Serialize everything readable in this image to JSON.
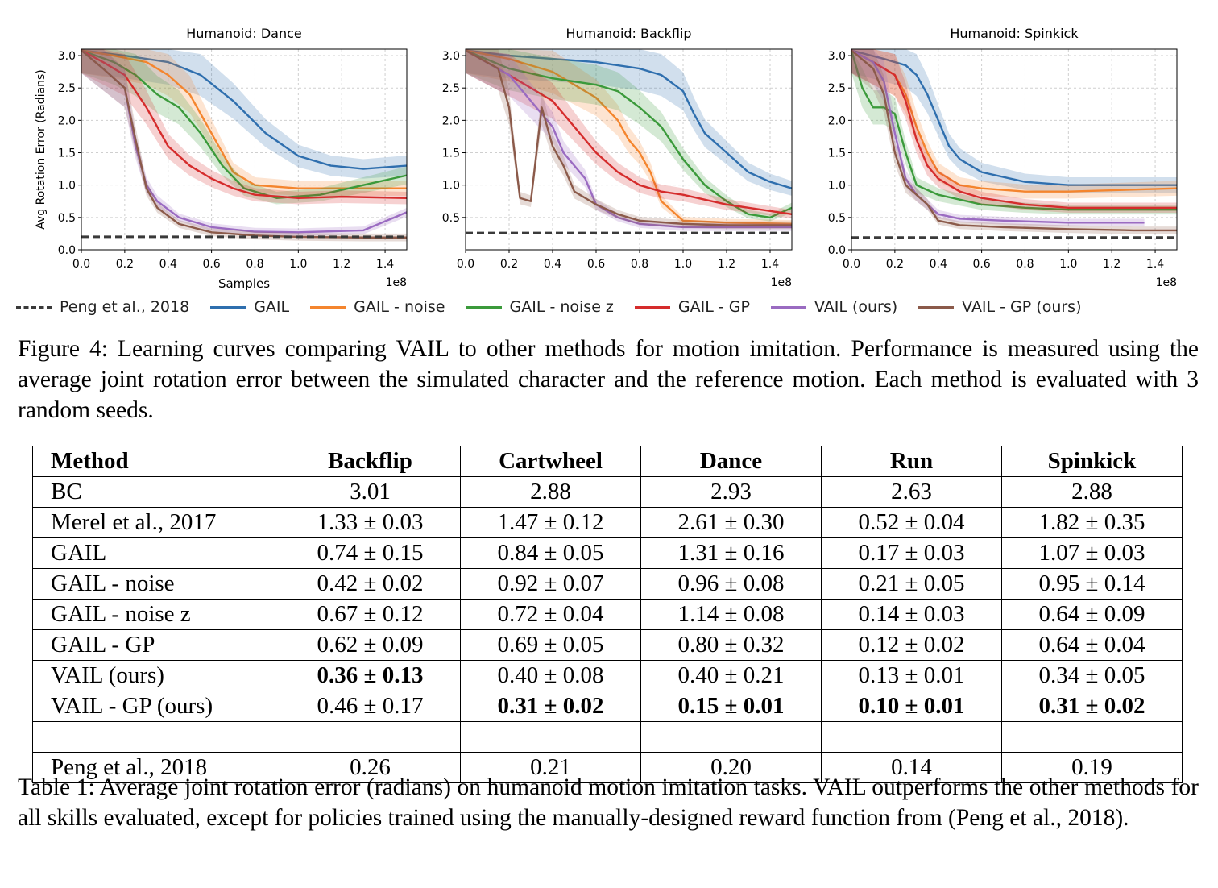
{
  "figure": {
    "legend": [
      {
        "label": "Peng et al., 2018",
        "color": "#3a3a3a",
        "dashed": true
      },
      {
        "label": "GAIL",
        "color": "#2f6fae"
      },
      {
        "label": "GAIL - noise",
        "color": "#f4852e"
      },
      {
        "label": "GAIL - noise z",
        "color": "#3b9a3b"
      },
      {
        "label": "GAIL - GP",
        "color": "#d52c2c"
      },
      {
        "label": "VAIL (ours)",
        "color": "#9a6bc1"
      },
      {
        "label": "VAIL - GP (ours)",
        "color": "#8b5a4a"
      }
    ],
    "caption": "Figure 4: Learning curves comparing VAIL to other methods for motion imitation. Performance is measured using the average joint rotation error between the simulated character and the reference motion. Each method is evaluated with 3 random seeds."
  },
  "chart_data": [
    {
      "type": "line",
      "title": "Humanoid: Dance",
      "xlabel": "Samples",
      "ylabel": "Avg Rotation Error (Radians)",
      "x_multiplier": "1e8",
      "xlim": [
        0,
        1.5
      ],
      "ylim": [
        0,
        3.1
      ],
      "xticks": [
        "0.0",
        "0.2",
        "0.4",
        "0.6",
        "0.8",
        "1.0",
        "1.2",
        "1.4"
      ],
      "yticks": [
        "0.0",
        "0.5",
        "1.0",
        "1.5",
        "2.0",
        "2.5",
        "3.0"
      ],
      "grid": true,
      "reference": {
        "name": "Peng et al., 2018",
        "y": 0.2
      },
      "series": [
        {
          "name": "GAIL",
          "x": [
            0,
            0.2,
            0.4,
            0.55,
            0.7,
            0.85,
            1.0,
            1.15,
            1.3,
            1.5
          ],
          "y": [
            3.08,
            3.0,
            2.9,
            2.7,
            2.3,
            1.8,
            1.45,
            1.3,
            1.25,
            1.3
          ]
        },
        {
          "name": "GAIL - noise",
          "x": [
            0,
            0.15,
            0.3,
            0.4,
            0.5,
            0.6,
            0.7,
            0.8,
            1.0,
            1.2,
            1.5
          ],
          "y": [
            3.08,
            3.0,
            2.9,
            2.7,
            2.4,
            1.8,
            1.2,
            1.0,
            0.95,
            0.95,
            0.95
          ]
        },
        {
          "name": "GAIL - noise z",
          "x": [
            0,
            0.15,
            0.25,
            0.35,
            0.45,
            0.55,
            0.65,
            0.75,
            0.9,
            1.1,
            1.3,
            1.5
          ],
          "y": [
            3.08,
            2.9,
            2.7,
            2.4,
            2.2,
            1.8,
            1.3,
            0.95,
            0.8,
            0.85,
            1.0,
            1.15
          ]
        },
        {
          "name": "GAIL - GP",
          "x": [
            0,
            0.1,
            0.2,
            0.3,
            0.4,
            0.5,
            0.6,
            0.7,
            0.8,
            1.0,
            1.2,
            1.5
          ],
          "y": [
            3.08,
            2.9,
            2.7,
            2.2,
            1.6,
            1.3,
            1.1,
            0.95,
            0.85,
            0.8,
            0.82,
            0.8
          ]
        },
        {
          "name": "VAIL (ours)",
          "x": [
            0,
            0.1,
            0.2,
            0.25,
            0.3,
            0.35,
            0.45,
            0.6,
            0.8,
            1.0,
            1.3,
            1.5
          ],
          "y": [
            3.08,
            2.8,
            2.5,
            1.6,
            1.0,
            0.75,
            0.5,
            0.35,
            0.28,
            0.27,
            0.3,
            0.58
          ]
        },
        {
          "name": "VAIL - GP (ours)",
          "x": [
            0,
            0.1,
            0.2,
            0.25,
            0.3,
            0.35,
            0.45,
            0.6,
            0.8,
            1.0,
            1.3,
            1.5
          ],
          "y": [
            3.08,
            2.8,
            2.5,
            1.7,
            0.95,
            0.65,
            0.4,
            0.27,
            0.22,
            0.2,
            0.19,
            0.19
          ]
        }
      ]
    },
    {
      "type": "line",
      "title": "Humanoid: Backflip",
      "x_multiplier": "1e8",
      "xlim": [
        0,
        1.5
      ],
      "ylim": [
        0,
        3.1
      ],
      "xticks": [
        "0.0",
        "0.2",
        "0.4",
        "0.6",
        "0.8",
        "1.0",
        "1.2",
        "1.4"
      ],
      "yticks": [
        "0.5",
        "1.0",
        "1.5",
        "2.0",
        "2.5",
        "3.0"
      ],
      "grid": true,
      "reference": {
        "name": "Peng et al., 2018",
        "y": 0.26
      },
      "series": [
        {
          "name": "GAIL",
          "x": [
            0,
            0.2,
            0.4,
            0.6,
            0.8,
            0.9,
            1.0,
            1.05,
            1.1,
            1.2,
            1.3,
            1.4,
            1.5
          ],
          "y": [
            3.08,
            3.0,
            2.95,
            2.9,
            2.8,
            2.7,
            2.45,
            2.1,
            1.8,
            1.5,
            1.2,
            1.05,
            0.95
          ]
        },
        {
          "name": "GAIL - noise",
          "x": [
            0,
            0.2,
            0.4,
            0.5,
            0.6,
            0.7,
            0.75,
            0.8,
            0.85,
            0.9,
            1.0,
            1.2,
            1.5
          ],
          "y": [
            3.08,
            2.95,
            2.75,
            2.55,
            2.35,
            2.0,
            1.7,
            1.5,
            1.2,
            0.75,
            0.45,
            0.42,
            0.4
          ]
        },
        {
          "name": "GAIL - noise z",
          "x": [
            0,
            0.2,
            0.4,
            0.6,
            0.7,
            0.8,
            0.9,
            1.0,
            1.1,
            1.2,
            1.3,
            1.4,
            1.5
          ],
          "y": [
            3.08,
            2.8,
            2.65,
            2.55,
            2.45,
            2.2,
            1.9,
            1.4,
            1.0,
            0.75,
            0.55,
            0.5,
            0.65
          ]
        },
        {
          "name": "GAIL - GP",
          "x": [
            0,
            0.2,
            0.4,
            0.5,
            0.6,
            0.7,
            0.8,
            0.9,
            1.0,
            1.2,
            1.4,
            1.5
          ],
          "y": [
            3.08,
            2.7,
            2.3,
            1.9,
            1.5,
            1.2,
            1.0,
            0.9,
            0.85,
            0.7,
            0.6,
            0.55
          ]
        },
        {
          "name": "VAIL (ours)",
          "x": [
            0,
            0.2,
            0.3,
            0.4,
            0.45,
            0.55,
            0.6,
            0.7,
            0.8,
            1.0,
            1.2,
            1.5
          ],
          "y": [
            3.08,
            2.7,
            2.3,
            1.9,
            1.5,
            1.1,
            0.7,
            0.5,
            0.4,
            0.35,
            0.35,
            0.35
          ]
        },
        {
          "name": "VAIL - GP (ours)",
          "x": [
            0,
            0.15,
            0.2,
            0.25,
            0.3,
            0.35,
            0.4,
            0.45,
            0.5,
            0.6,
            0.7,
            0.8,
            1.0,
            1.2,
            1.5
          ],
          "y": [
            3.08,
            2.8,
            2.2,
            0.8,
            0.75,
            2.2,
            1.6,
            1.3,
            0.9,
            0.7,
            0.55,
            0.45,
            0.4,
            0.38,
            0.38
          ]
        }
      ]
    },
    {
      "type": "line",
      "title": "Humanoid: Spinkick",
      "x_multiplier": "1e8",
      "xlim": [
        0,
        1.5
      ],
      "ylim": [
        0,
        3.1
      ],
      "xticks": [
        "0.0",
        "0.2",
        "0.4",
        "0.6",
        "0.8",
        "1.0",
        "1.2",
        "1.4"
      ],
      "yticks": [
        "0.0",
        "0.5",
        "1.0",
        "1.5",
        "2.0",
        "2.5",
        "3.0"
      ],
      "grid": true,
      "reference": {
        "name": "Peng et al., 2018",
        "y": 0.19
      },
      "series": [
        {
          "name": "GAIL",
          "x": [
            0,
            0.15,
            0.25,
            0.3,
            0.35,
            0.4,
            0.45,
            0.5,
            0.6,
            0.8,
            1.0,
            1.2,
            1.5
          ],
          "y": [
            3.08,
            2.95,
            2.85,
            2.7,
            2.4,
            2.0,
            1.6,
            1.4,
            1.2,
            1.05,
            1.0,
            1.0,
            1.0
          ]
        },
        {
          "name": "GAIL - noise",
          "x": [
            0,
            0.1,
            0.2,
            0.25,
            0.3,
            0.35,
            0.4,
            0.5,
            0.6,
            0.8,
            1.0,
            1.5
          ],
          "y": [
            3.08,
            2.9,
            2.7,
            2.4,
            1.9,
            1.5,
            1.2,
            1.0,
            0.95,
            0.9,
            0.9,
            0.95
          ]
        },
        {
          "name": "GAIL - noise z",
          "x": [
            0,
            0.05,
            0.1,
            0.15,
            0.2,
            0.25,
            0.3,
            0.4,
            0.6,
            0.8,
            1.0,
            1.5
          ],
          "y": [
            3.08,
            2.5,
            2.2,
            2.2,
            2.1,
            1.5,
            1.0,
            0.85,
            0.7,
            0.65,
            0.62,
            0.62
          ]
        },
        {
          "name": "GAIL - GP",
          "x": [
            0,
            0.1,
            0.2,
            0.25,
            0.3,
            0.35,
            0.4,
            0.5,
            0.6,
            0.8,
            1.0,
            1.5
          ],
          "y": [
            3.08,
            2.9,
            2.7,
            2.3,
            1.7,
            1.3,
            1.1,
            0.9,
            0.8,
            0.7,
            0.65,
            0.65
          ]
        },
        {
          "name": "VAIL (ours)",
          "x": [
            0,
            0.1,
            0.15,
            0.2,
            0.25,
            0.3,
            0.35,
            0.4,
            0.5,
            0.7,
            1.0,
            1.35
          ],
          "y": [
            3.08,
            2.9,
            2.6,
            1.8,
            1.1,
            0.85,
            0.7,
            0.55,
            0.48,
            0.45,
            0.42,
            0.42
          ]
        },
        {
          "name": "VAIL - GP (ours)",
          "x": [
            0,
            0.1,
            0.15,
            0.2,
            0.25,
            0.3,
            0.35,
            0.4,
            0.5,
            0.7,
            1.0,
            1.3,
            1.5
          ],
          "y": [
            3.08,
            2.8,
            2.4,
            1.5,
            1.0,
            0.85,
            0.7,
            0.45,
            0.38,
            0.35,
            0.32,
            0.3,
            0.3
          ]
        }
      ]
    }
  ],
  "table": {
    "headers": [
      "Method",
      "Backflip",
      "Cartwheel",
      "Dance",
      "Run",
      "Spinkick"
    ],
    "rows": [
      {
        "method": "BC",
        "cells": [
          "3.01",
          "2.88",
          "2.93",
          "2.63",
          "2.88"
        ],
        "bold": [
          false,
          false,
          false,
          false,
          false
        ]
      },
      {
        "method": "Merel et al., 2017",
        "cells": [
          "1.33 ± 0.03",
          "1.47 ± 0.12",
          "2.61 ± 0.30",
          "0.52 ± 0.04",
          "1.82 ± 0.35"
        ],
        "bold": [
          false,
          false,
          false,
          false,
          false
        ]
      },
      {
        "method": "GAIL",
        "cells": [
          "0.74 ± 0.15",
          "0.84 ± 0.05",
          "1.31 ± 0.16",
          "0.17 ± 0.03",
          "1.07 ± 0.03"
        ],
        "bold": [
          false,
          false,
          false,
          false,
          false
        ]
      },
      {
        "method": "GAIL - noise",
        "cells": [
          "0.42 ± 0.02",
          "0.92 ± 0.07",
          "0.96 ± 0.08",
          "0.21 ± 0.05",
          "0.95 ± 0.14"
        ],
        "bold": [
          false,
          false,
          false,
          false,
          false
        ]
      },
      {
        "method": "GAIL - noise z",
        "cells": [
          "0.67 ± 0.12",
          "0.72 ± 0.04",
          "1.14 ± 0.08",
          "0.14 ± 0.03",
          "0.64 ± 0.09"
        ],
        "bold": [
          false,
          false,
          false,
          false,
          false
        ]
      },
      {
        "method": "GAIL - GP",
        "cells": [
          "0.62 ± 0.09",
          "0.69 ± 0.05",
          "0.80 ± 0.32",
          "0.12 ± 0.02",
          "0.64 ± 0.04"
        ],
        "bold": [
          false,
          false,
          false,
          false,
          false
        ]
      },
      {
        "method": "VAIL (ours)",
        "cells": [
          "0.36 ± 0.13",
          "0.40 ± 0.08",
          "0.40 ± 0.21",
          "0.13 ± 0.01",
          "0.34 ± 0.05"
        ],
        "bold": [
          true,
          false,
          false,
          false,
          false
        ]
      },
      {
        "method": "VAIL - GP (ours)",
        "cells": [
          "0.46 ± 0.17",
          "0.31 ± 0.02",
          "0.15 ± 0.01",
          "0.10 ± 0.01",
          "0.31 ± 0.02"
        ],
        "bold": [
          false,
          true,
          true,
          true,
          true
        ]
      }
    ],
    "footer_row": {
      "method": "Peng et al., 2018",
      "cells": [
        "0.26",
        "0.21",
        "0.20",
        "0.14",
        "0.19"
      ]
    },
    "caption": "Table 1: Average joint rotation error (radians) on humanoid motion imitation tasks. VAIL outperforms the other methods for all skills evaluated, except for policies trained using the manually-designed reward function from (Peng et al., 2018)."
  }
}
